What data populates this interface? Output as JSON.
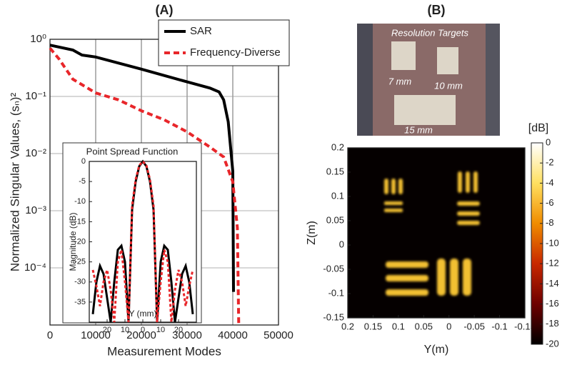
{
  "chart_data": [
    {
      "type": "line",
      "title": "(A)",
      "xlabel": "Measurement Modes",
      "ylabel": "Normalized Singular Values, (sₙ)²",
      "xlim": [
        0,
        50000
      ],
      "xticks": [
        0,
        10000,
        20000,
        30000,
        40000,
        50000
      ],
      "ylim": [
        1e-05,
        1
      ],
      "log_y": true,
      "yticks": [
        {
          "value": 1,
          "label": "10⁰"
        },
        {
          "value": 0.1,
          "label": "10⁻¹"
        },
        {
          "value": 0.01,
          "label": "10⁻²"
        },
        {
          "value": 0.001,
          "label": "10⁻³"
        },
        {
          "value": 0.0001,
          "label": "10⁻⁴"
        }
      ],
      "grid": true,
      "legend": "upper right",
      "series": [
        {
          "name": "SAR",
          "color": "#000000",
          "dash": false,
          "x": [
            0,
            5000,
            7000,
            10000,
            20000,
            30000,
            35000,
            37000,
            38000,
            39000,
            40000,
            40150
          ],
          "values": [
            0.79,
            0.65,
            0.53,
            0.49,
            0.3,
            0.18,
            0.14,
            0.12,
            0.087,
            0.036,
            0.0049,
            3.8e-05
          ]
        },
        {
          "name": "Frequency-Diverse",
          "color": "#e8262a",
          "dash": true,
          "x": [
            0,
            2000,
            5000,
            10000,
            15000,
            20000,
            25000,
            30000,
            35000,
            38000,
            40000,
            41000,
            41300
          ],
          "values": [
            0.7,
            0.45,
            0.2,
            0.115,
            0.087,
            0.056,
            0.039,
            0.024,
            0.013,
            0.0087,
            0.0032,
            0.0005,
            1e-05
          ]
        }
      ]
    },
    {
      "type": "line",
      "title": "Point Spread Function",
      "xlabel": "Y (mm)",
      "ylabel": "Magnitude (dB)",
      "xlim": [
        -30,
        30
      ],
      "xticks": [
        {
          "value": -20,
          "label": "20"
        },
        {
          "value": -10,
          "label": "10"
        },
        0,
        {
          "value": 10,
          "label": "10"
        },
        20
      ],
      "ylim": [
        -40,
        0
      ],
      "yticks": [
        0,
        -5,
        -10,
        -15,
        -20,
        -25,
        -30,
        -35
      ],
      "grid": false,
      "series": [
        {
          "color": "#000000",
          "dash": false,
          "x": [
            -28,
            -26,
            -24,
            -22,
            -20,
            -18,
            -16,
            -14,
            -12,
            -10,
            -8,
            -6,
            -4,
            -2,
            0,
            2,
            4,
            6,
            8,
            10,
            12,
            14,
            16,
            18,
            20,
            22,
            24,
            26,
            28
          ],
          "values": [
            -38,
            -30,
            -26,
            -28,
            -34,
            -40,
            -30,
            -22,
            -21,
            -25,
            -40,
            -12,
            -5,
            -1.2,
            0,
            -1.2,
            -5,
            -12,
            -40,
            -25,
            -21,
            -22,
            -30,
            -40,
            -34,
            -28,
            -26,
            -30,
            -38
          ]
        },
        {
          "color": "#e8262a",
          "dash": true,
          "x": [
            -28,
            -26,
            -24,
            -22,
            -20,
            -18,
            -16,
            -14,
            -12,
            -10,
            -8,
            -6,
            -4,
            -2,
            0,
            2,
            4,
            6,
            8,
            10,
            12,
            14,
            16,
            18,
            20,
            22,
            24,
            26,
            28
          ],
          "values": [
            -27,
            -31,
            -36,
            -30,
            -27,
            -32,
            -40,
            -25,
            -22,
            -30,
            -40,
            -11,
            -4.5,
            -1,
            0,
            -1,
            -4.5,
            -11,
            -40,
            -30,
            -22,
            -25,
            -40,
            -32,
            -27,
            -30,
            -36,
            -31,
            -27
          ]
        }
      ]
    },
    {
      "type": "image",
      "title": "(B)",
      "xlabel": "Y(m)",
      "ylabel": "Z(m)",
      "xlim": [
        0.2,
        -0.15
      ],
      "xticks": [
        0.2,
        0.15,
        0.1,
        0.05,
        0,
        -0.05,
        -0.1,
        -0.15
      ],
      "ylim": [
        -0.15,
        0.2
      ],
      "yticks": [
        -0.15,
        -0.1,
        -0.05,
        0,
        0.05,
        0.1,
        0.15,
        0.2
      ],
      "colorbar_label": "[dB]",
      "clim": [
        -20,
        0
      ],
      "cticks": [
        0,
        -2,
        -4,
        -6,
        -8,
        -10,
        -12,
        -14,
        -16,
        -18,
        -20
      ],
      "colors": [
        "#000000",
        "#6e0000",
        "#c82800",
        "#f08c00",
        "#ffe060",
        "#ffffff"
      ]
    }
  ],
  "photo": {
    "title": "Resolution Targets",
    "labels": [
      "7 mm",
      "10 mm",
      "15 mm"
    ]
  }
}
